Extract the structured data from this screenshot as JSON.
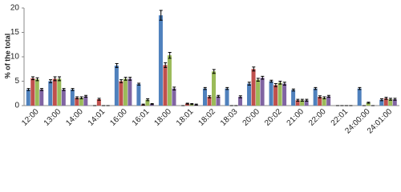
{
  "chart_data": {
    "type": "bar",
    "y_label": "% of the total",
    "categories": [
      "12:00",
      "13:00",
      "14:00",
      "14:01",
      "16:00",
      "16:01",
      "18:00",
      "18:01",
      "18:02",
      "18:03",
      "20:00",
      "20:02",
      "21:00",
      "22:00",
      "22:01",
      "24:00:00",
      "24:01:00"
    ],
    "series": [
      {
        "color": "#4f81bd",
        "values": [
          3.3,
          5.0,
          3.3,
          0,
          8.2,
          4.4,
          18.5,
          0,
          3.5,
          3.5,
          4.5,
          5.0,
          3.2,
          3.5,
          0,
          3.5,
          1.2
        ],
        "errors": [
          0.2,
          0.3,
          0.2,
          0,
          0.4,
          0.2,
          1.0,
          0,
          0.2,
          0.2,
          0.3,
          0.2,
          0.2,
          0.2,
          0,
          0.2,
          0.2
        ]
      },
      {
        "color": "#c0504d",
        "values": [
          5.6,
          5.5,
          1.6,
          1.3,
          5.0,
          0.2,
          8.3,
          0.4,
          1.8,
          0,
          7.5,
          4.2,
          1.1,
          1.8,
          0,
          0,
          1.5
        ],
        "errors": [
          0.3,
          0.4,
          0.2,
          0.2,
          0.3,
          0.1,
          0.5,
          0.1,
          0.2,
          0,
          0.4,
          0.3,
          0.2,
          0.2,
          0,
          0,
          0.2
        ]
      },
      {
        "color": "#9bbb59",
        "values": [
          5.4,
          5.5,
          1.6,
          0,
          5.5,
          1.2,
          10.3,
          0.3,
          7.0,
          0,
          5.3,
          4.7,
          1.1,
          1.6,
          0,
          0.6,
          1.3
        ],
        "errors": [
          0.3,
          0.4,
          0.2,
          0,
          0.3,
          0.2,
          0.6,
          0.1,
          0.4,
          0,
          0.3,
          0.3,
          0.2,
          0.2,
          0,
          0.1,
          0.2
        ]
      },
      {
        "color": "#8064a2",
        "values": [
          3.3,
          3.3,
          1.9,
          0,
          5.5,
          0.3,
          3.5,
          0.2,
          1.9,
          1.8,
          5.7,
          4.5,
          1.1,
          1.9,
          0,
          0,
          1.3
        ],
        "errors": [
          0.2,
          0.2,
          0.2,
          0,
          0.3,
          0.1,
          0.3,
          0.1,
          0.2,
          0.2,
          0.3,
          0.3,
          0.2,
          0.2,
          0,
          0,
          0.2
        ]
      }
    ],
    "ylim": [
      0,
      20
    ],
    "yticks": [
      0,
      5,
      10,
      15,
      20
    ],
    "grid": false
  }
}
